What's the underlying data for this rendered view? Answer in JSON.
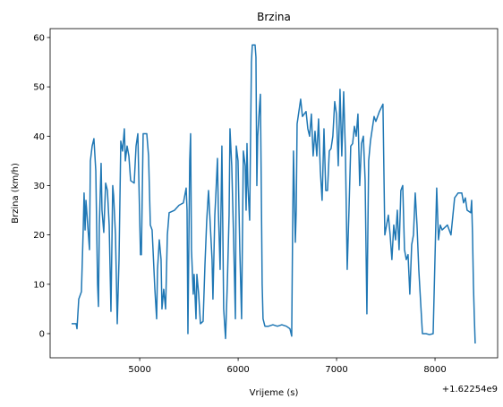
{
  "chart_data": {
    "type": "line",
    "title": "Brzina",
    "x_label": "Vrijeme (s)",
    "y_label": "Brzina (km/h)",
    "x_offset_label": "+1.62254e9",
    "xlim": [
      4090,
      8636
    ],
    "ylim": [
      -4.9,
      61.8
    ],
    "xticks": [
      5000,
      6000,
      7000,
      8000
    ],
    "yticks": [
      0,
      10,
      20,
      30,
      40,
      50,
      60
    ],
    "grid": false,
    "series": [
      {
        "name": "Brzina",
        "color": "#1f77b4",
        "x": [
          4308,
          4354,
          4363,
          4381,
          4408,
          4426,
          4435,
          4445,
          4454,
          4472,
          4490,
          4499,
          4517,
          4535,
          4554,
          4572,
          4581,
          4590,
          4608,
          4617,
          4635,
          4654,
          4672,
          4690,
          4708,
          4726,
          4735,
          4754,
          4772,
          4790,
          4808,
          4826,
          4844,
          4854,
          4872,
          4890,
          4908,
          4944,
          4963,
          4981,
          5008,
          5017,
          5035,
          5072,
          5090,
          5108,
          5126,
          5154,
          5172,
          5181,
          5199,
          5217,
          5226,
          5244,
          5263,
          5281,
          5299,
          5354,
          5399,
          5444,
          5472,
          5481,
          5490,
          5508,
          5517,
          5526,
          5544,
          5553,
          5572,
          5581,
          5599,
          5617,
          5644,
          5663,
          5681,
          5699,
          5717,
          5735,
          5744,
          5763,
          5772,
          5790,
          5799,
          5817,
          5835,
          5853,
          5872,
          5890,
          5908,
          5917,
          5935,
          5953,
          5972,
          5981,
          5999,
          6017,
          6035,
          6053,
          6072,
          6081,
          6090,
          6099,
          6117,
          6126,
          6135,
          6144,
          6172,
          6181,
          6190,
          6199,
          6217,
          6226,
          6235,
          6244,
          6253,
          6272,
          6308,
          6353,
          6399,
          6444,
          6490,
          6526,
          6544,
          6553,
          6562,
          6581,
          6590,
          6599,
          6617,
          6635,
          6653,
          6690,
          6708,
          6726,
          6744,
          6762,
          6781,
          6799,
          6817,
          6835,
          6853,
          6872,
          6890,
          6908,
          6926,
          6944,
          6962,
          6981,
          6999,
          7017,
          7035,
          7053,
          7072,
          7090,
          7108,
          7126,
          7144,
          7163,
          7181,
          7199,
          7217,
          7235,
          7253,
          7272,
          7290,
          7308,
          7326,
          7344,
          7381,
          7399,
          7435,
          7471,
          7490,
          7508,
          7526,
          7544,
          7562,
          7581,
          7599,
          7617,
          7635,
          7653,
          7672,
          7690,
          7708,
          7726,
          7744,
          7763,
          7781,
          7799,
          7817,
          7835,
          7872,
          7908,
          7944,
          7981,
          8017,
          8035,
          8053,
          8072,
          8126,
          8162,
          8199,
          8235,
          8272,
          8290,
          8308,
          8326,
          8363,
          8372,
          8381,
          8390,
          8399,
          8408
        ],
        "values": [
          2,
          2,
          1,
          7,
          8.5,
          21,
          28.5,
          21,
          27,
          22,
          17,
          35,
          38,
          39.5,
          33,
          10,
          5.5,
          22,
          34.5,
          25,
          20.5,
          30.5,
          29,
          22,
          4.5,
          30,
          28,
          20,
          2,
          15,
          39,
          37,
          41.5,
          35,
          38,
          36,
          31,
          30.5,
          38,
          40.5,
          16,
          16,
          40.5,
          40.5,
          36,
          22,
          21,
          9,
          3,
          13,
          19,
          15,
          5,
          9,
          5,
          20,
          24.5,
          25,
          26,
          26.5,
          29.5,
          25,
          0,
          35,
          40.5,
          17,
          8,
          12,
          3,
          12,
          8,
          2,
          2.5,
          14,
          23,
          29,
          22,
          15,
          7,
          24,
          27.5,
          35.5,
          25,
          13,
          38,
          5,
          -1,
          10,
          24,
          41.5,
          34,
          20,
          3,
          38,
          35,
          17,
          3,
          37,
          34,
          25,
          38.5,
          30,
          23,
          39,
          55,
          58.5,
          58.5,
          56,
          30,
          40,
          46,
          48.5,
          30,
          10,
          3,
          1.5,
          1.5,
          1.8,
          1.5,
          1.8,
          1.5,
          1,
          -0.5,
          20,
          37,
          18.5,
          25,
          42.5,
          45,
          47.5,
          44,
          45,
          41.5,
          40,
          44.5,
          36,
          41,
          36,
          43.5,
          33,
          27,
          41.5,
          29,
          29,
          37,
          37.5,
          40,
          47,
          44.5,
          34,
          49.5,
          36,
          49,
          36.5,
          13,
          25,
          38,
          38.5,
          42,
          40,
          44.5,
          30,
          38.5,
          40,
          31,
          4,
          35,
          39,
          44,
          43,
          45,
          46.5,
          20,
          22,
          24,
          20,
          15,
          22,
          19,
          25,
          17,
          29,
          30,
          17,
          15,
          16,
          8,
          18,
          20,
          28.5,
          22,
          13,
          0,
          0,
          -0.2,
          0,
          29.5,
          19,
          22,
          21,
          22,
          20,
          27.5,
          28.5,
          28.5,
          26.5,
          27.5,
          25,
          24.5,
          27,
          20,
          10,
          3.5,
          -2
        ]
      }
    ]
  }
}
